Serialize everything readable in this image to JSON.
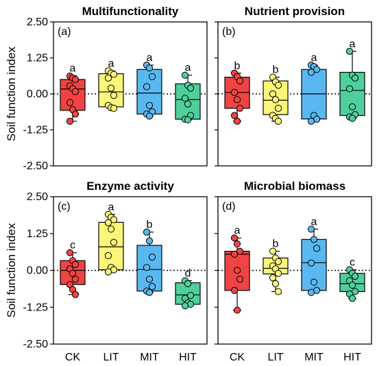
{
  "chart_data": {
    "type": "box",
    "ylabel": "Soil function index",
    "ylim": [
      -2.5,
      2.5
    ],
    "yticks": [
      2.5,
      1.25,
      0,
      -1.25,
      -2.5
    ],
    "ytick_labels": [
      "2.50",
      "1.25",
      "0.00",
      "-1.25",
      "-2.50"
    ],
    "categories": [
      "CK",
      "LIT",
      "MIT",
      "HIT"
    ],
    "colors": {
      "CK": "#f04444",
      "LIT": "#fbf57a",
      "MIT": "#5ab8f0",
      "HIT": "#4fcf9b"
    },
    "reference_line": 0,
    "panels": [
      {
        "title": "Multifunctionality",
        "label": "(a)",
        "boxes": [
          {
            "category": "CK",
            "q1": -0.57,
            "median": 0.17,
            "q3": 0.5,
            "whisker_low": -0.95,
            "whisker_high": 0.63,
            "letter": "a",
            "points": [
              0.62,
              0.55,
              0.5,
              0.28,
              0.18,
              0.08,
              -0.3,
              -0.55,
              -0.7,
              -0.95
            ]
          },
          {
            "category": "LIT",
            "q1": -0.45,
            "median": 0.07,
            "q3": 0.7,
            "whisker_low": -0.5,
            "whisker_high": 0.8,
            "letter": "a",
            "points": [
              0.8,
              0.72,
              0.68,
              0.55,
              0.2,
              -0.05,
              -0.4,
              -0.48,
              -0.5
            ]
          },
          {
            "category": "MIT",
            "q1": -0.7,
            "median": 0.03,
            "q3": 0.85,
            "whisker_low": -0.77,
            "whisker_high": 1.0,
            "letter": "a",
            "points": [
              1.0,
              0.9,
              0.6,
              0.25,
              -0.4,
              -0.62,
              -0.7,
              -0.77
            ]
          },
          {
            "category": "HIT",
            "q1": -0.88,
            "median": -0.2,
            "q3": 0.35,
            "whisker_low": -0.9,
            "whisker_high": 0.65,
            "letter": "a",
            "points": [
              0.65,
              0.3,
              0.2,
              -0.15,
              -0.35,
              -0.75,
              -0.88,
              -0.9
            ]
          }
        ]
      },
      {
        "title": "Nutrient provision",
        "label": "(b)",
        "boxes": [
          {
            "category": "CK",
            "q1": -0.5,
            "median": 0.05,
            "q3": 0.58,
            "whisker_low": -0.95,
            "whisker_high": 0.72,
            "letter": "b",
            "points": [
              0.72,
              0.6,
              0.45,
              0.05,
              -0.2,
              -0.5,
              -0.75,
              -0.95
            ]
          },
          {
            "category": "LIT",
            "q1": -0.72,
            "median": -0.22,
            "q3": 0.45,
            "whisker_low": -0.95,
            "whisker_high": 0.58,
            "letter": "b",
            "points": [
              0.58,
              0.42,
              0.3,
              0.0,
              -0.2,
              -0.5,
              -0.75,
              -0.85,
              -0.95
            ]
          },
          {
            "category": "MIT",
            "q1": -0.87,
            "median": 0.0,
            "q3": 0.85,
            "whisker_low": -0.95,
            "whisker_high": 1.0,
            "letter": "a",
            "points": [
              1.0,
              0.95,
              0.85,
              0.75,
              -0.75,
              -0.88,
              -0.95
            ]
          },
          {
            "category": "HIT",
            "q1": -0.75,
            "median": 0.12,
            "q3": 0.75,
            "whisker_low": -0.85,
            "whisker_high": 1.48,
            "letter": "a",
            "points": [
              1.48,
              0.65,
              0.55,
              0.18,
              -0.45,
              -0.72,
              -0.8,
              -0.85
            ]
          }
        ]
      },
      {
        "title": "Enzyme activity",
        "label": "(c)",
        "boxes": [
          {
            "category": "CK",
            "q1": -0.48,
            "median": 0.0,
            "q3": 0.33,
            "whisker_low": -0.82,
            "whisker_high": 0.6,
            "letter": "c",
            "points": [
              0.6,
              0.33,
              0.2,
              0.05,
              -0.1,
              -0.3,
              -0.48,
              -0.65,
              -0.82
            ]
          },
          {
            "category": "LIT",
            "q1": 0.02,
            "median": 0.8,
            "q3": 1.63,
            "whisker_low": -0.05,
            "whisker_high": 1.9,
            "letter": "a",
            "points": [
              1.9,
              1.8,
              1.72,
              1.62,
              1.4,
              0.95,
              0.5,
              0.1,
              0.02,
              -0.05
            ]
          },
          {
            "category": "MIT",
            "q1": -0.7,
            "median": 0.03,
            "q3": 0.85,
            "whisker_low": -0.75,
            "whisker_high": 1.3,
            "letter": "b",
            "points": [
              1.3,
              1.0,
              0.45,
              0.1,
              -0.3,
              -0.55,
              -0.7,
              -0.75
            ]
          },
          {
            "category": "HIT",
            "q1": -1.15,
            "median": -0.83,
            "q3": -0.42,
            "whisker_low": -1.2,
            "whisker_high": -0.35,
            "letter": "d",
            "points": [
              -0.35,
              -0.45,
              -0.85,
              -0.95,
              -1.1,
              -1.15,
              -1.2
            ]
          }
        ]
      },
      {
        "title": "Microbial biomass",
        "label": "(d)",
        "boxes": [
          {
            "category": "CK",
            "q1": -0.68,
            "median": 0.55,
            "q3": 0.65,
            "whisker_low": -1.35,
            "whisker_high": 1.1,
            "letter": "a",
            "points": [
              1.1,
              0.9,
              0.65,
              0.55,
              0.0,
              -0.3,
              -0.68,
              -1.35
            ]
          },
          {
            "category": "LIT",
            "q1": -0.12,
            "median": 0.07,
            "q3": 0.42,
            "whisker_low": -0.72,
            "whisker_high": 0.65,
            "letter": "b",
            "points": [
              0.65,
              0.42,
              0.3,
              0.15,
              0.05,
              -0.1,
              -0.25,
              -0.45,
              -0.72
            ]
          },
          {
            "category": "MIT",
            "q1": -0.68,
            "median": 0.26,
            "q3": 1.05,
            "whisker_low": -0.75,
            "whisker_high": 1.4,
            "letter": "a",
            "points": [
              1.4,
              1.05,
              0.75,
              0.25,
              -0.4,
              -0.68,
              -0.75
            ]
          },
          {
            "category": "HIT",
            "q1": -0.72,
            "median": -0.45,
            "q3": -0.1,
            "whisker_low": -0.95,
            "whisker_high": 0.02,
            "letter": "c",
            "points": [
              0.02,
              -0.1,
              -0.2,
              -0.35,
              -0.5,
              -0.72,
              -0.8,
              -0.95
            ]
          }
        ]
      }
    ]
  }
}
